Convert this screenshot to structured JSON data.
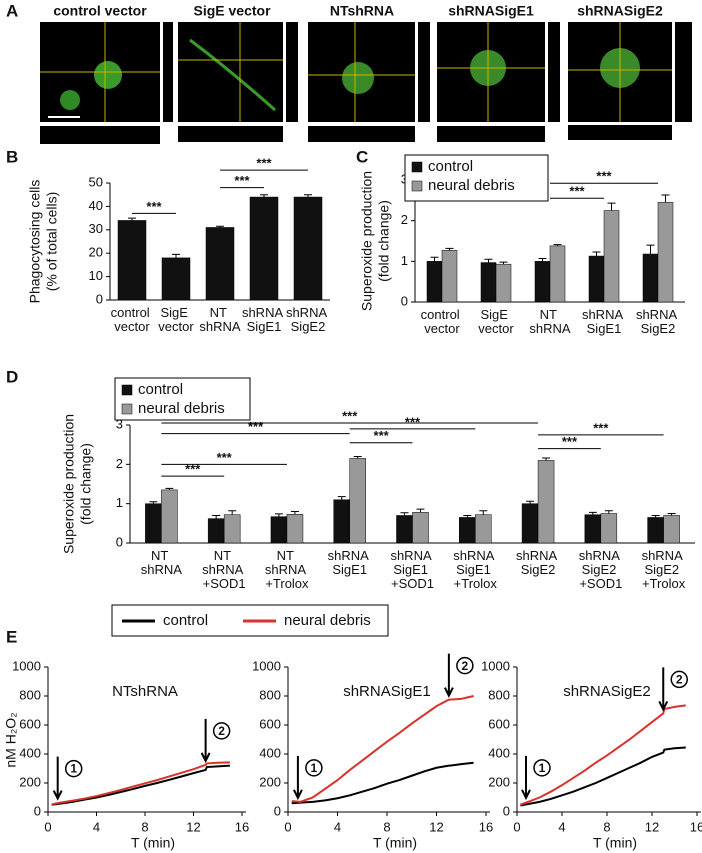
{
  "panel_labels": [
    "A",
    "B",
    "C",
    "D",
    "E"
  ],
  "image_titles": [
    "control vector",
    "SigE vector",
    "NTshRNA",
    "shRNASigE1",
    "shRNASigE2"
  ],
  "chart_data": [
    {
      "type": "bar",
      "ylabel": [
        "Phagocytosing cells",
        "(% of total cells)"
      ],
      "categories": [
        "control vector",
        "SigE vector",
        "NT shRNA",
        "shRNA SigE1",
        "shRNA SigE2"
      ],
      "values": [
        34,
        18,
        31,
        44,
        44
      ],
      "errors": [
        1,
        1.5,
        0.5,
        1,
        1
      ],
      "color": "#111111",
      "ylim": [
        0,
        50
      ],
      "yticks": [
        0,
        10,
        20,
        30,
        40,
        50
      ],
      "significance": [
        "***",
        "***",
        "***"
      ]
    },
    {
      "type": "bar",
      "ylabel": [
        "Superoxide production",
        "(fold change)"
      ],
      "categories": [
        "control vector",
        "SigE vector",
        "NT shRNA",
        "shRNA SigE1",
        "shRNA SigE2"
      ],
      "series": [
        {
          "name": "control",
          "color": "#111111",
          "values": [
            1.0,
            0.97,
            1.0,
            1.13,
            1.18
          ],
          "errors": [
            0.1,
            0.08,
            0.07,
            0.1,
            0.22
          ]
        },
        {
          "name": "neural debris",
          "color": "#999999",
          "values": [
            1.27,
            0.93,
            1.38,
            2.25,
            2.45
          ],
          "errors": [
            0.05,
            0.05,
            0.03,
            0.18,
            0.18
          ]
        }
      ],
      "ylim": [
        0,
        3
      ],
      "yticks": [
        0,
        1,
        2,
        3
      ],
      "legend": "top-left",
      "significance": [
        "***",
        "***"
      ]
    },
    {
      "type": "bar",
      "ylabel": [
        "Superoxide production",
        "(fold change)"
      ],
      "categories": [
        "NT shRNA",
        "NT shRNA +SOD1",
        "NT shRNA +Trolox",
        "shRNA SigE1",
        "shRNA SigE1 +SOD1",
        "shRNA SigE1 +Trolox",
        "shRNA SigE2",
        "shRNA SigE2 +SOD1",
        "shRNA SigE2 +Trolox"
      ],
      "series": [
        {
          "name": "control",
          "color": "#111111",
          "values": [
            1.0,
            0.62,
            0.67,
            1.1,
            0.7,
            0.65,
            1.0,
            0.72,
            0.65
          ],
          "errors": [
            0.05,
            0.08,
            0.07,
            0.08,
            0.07,
            0.05,
            0.06,
            0.06,
            0.05
          ]
        },
        {
          "name": "neural debris",
          "color": "#999999",
          "values": [
            1.35,
            0.72,
            0.73,
            2.15,
            0.78,
            0.72,
            2.1,
            0.75,
            0.7
          ],
          "errors": [
            0.04,
            0.1,
            0.07,
            0.05,
            0.08,
            0.1,
            0.06,
            0.07,
            0.05
          ]
        }
      ],
      "ylim": [
        0,
        3
      ],
      "yticks": [
        0,
        1,
        2,
        3
      ],
      "legend": "top-left",
      "significance": [
        "***",
        "***",
        "***",
        "***",
        "***",
        "***",
        "***",
        "***"
      ]
    },
    {
      "type": "line",
      "title": "NTshRNA",
      "ylabel": "nM H₂O₂",
      "xlabel": "T (min)",
      "x": [
        0.3,
        1,
        2,
        3,
        4,
        5,
        6,
        7,
        8,
        9,
        10,
        11,
        12,
        13,
        13.1,
        14,
        15
      ],
      "series": [
        {
          "name": "control",
          "color": "#000000",
          "values": [
            50,
            58,
            70,
            85,
            100,
            118,
            138,
            158,
            180,
            200,
            222,
            245,
            268,
            290,
            310,
            315,
            320
          ]
        },
        {
          "name": "neural debris",
          "color": "#d9322b",
          "values": [
            52,
            65,
            78,
            92,
            110,
            130,
            152,
            175,
            198,
            220,
            245,
            270,
            295,
            325,
            335,
            340,
            342
          ]
        }
      ],
      "xlim": [
        0,
        16
      ],
      "xticks": [
        0,
        4,
        8,
        12,
        16
      ],
      "ylim": [
        0,
        1000
      ],
      "yticks": [
        0,
        200,
        400,
        600,
        800,
        1000
      ],
      "events": [
        {
          "label": "1",
          "x": 0.8
        },
        {
          "label": "2",
          "x": 13
        }
      ]
    },
    {
      "type": "line",
      "title": "shRNASigE1",
      "xlabel": "T (min)",
      "x": [
        0.3,
        1,
        2,
        3,
        4,
        5,
        6,
        7,
        8,
        9,
        10,
        11,
        12,
        13,
        13.1,
        14,
        15
      ],
      "series": [
        {
          "name": "control",
          "color": "#000000",
          "values": [
            60,
            65,
            70,
            80,
            95,
            115,
            140,
            165,
            195,
            220,
            250,
            280,
            305,
            320,
            320,
            330,
            340
          ]
        },
        {
          "name": "neural debris",
          "color": "#d9322b",
          "values": [
            75,
            70,
            100,
            160,
            220,
            290,
            355,
            420,
            485,
            545,
            610,
            670,
            730,
            775,
            775,
            780,
            800
          ]
        }
      ],
      "xlim": [
        0,
        16
      ],
      "xticks": [
        0,
        4,
        8,
        12,
        16
      ],
      "ylim": [
        0,
        1000
      ],
      "yticks": [
        0,
        200,
        400,
        600,
        800,
        1000
      ],
      "events": [
        {
          "label": "1",
          "x": 0.8
        },
        {
          "label": "2",
          "x": 13
        }
      ]
    },
    {
      "type": "line",
      "title": "shRNASigE2",
      "xlabel": "T (min)",
      "x": [
        0.3,
        1,
        2,
        3,
        4,
        5,
        6,
        7,
        8,
        9,
        10,
        11,
        12,
        13,
        13.1,
        14,
        15
      ],
      "series": [
        {
          "name": "control",
          "color": "#000000",
          "values": [
            45,
            55,
            70,
            90,
            115,
            140,
            170,
            200,
            235,
            270,
            305,
            340,
            380,
            410,
            430,
            440,
            445
          ]
        },
        {
          "name": "neural debris",
          "color": "#d9322b",
          "values": [
            50,
            70,
            100,
            140,
            185,
            235,
            285,
            340,
            390,
            445,
            500,
            560,
            620,
            680,
            710,
            725,
            735
          ]
        }
      ],
      "xlim": [
        0,
        16
      ],
      "xticks": [
        0,
        4,
        8,
        12,
        16
      ],
      "ylim": [
        0,
        1000
      ],
      "yticks": [
        0,
        200,
        400,
        600,
        800,
        1000
      ],
      "events": [
        {
          "label": "1",
          "x": 0.8
        },
        {
          "label": "2",
          "x": 13
        }
      ]
    }
  ]
}
